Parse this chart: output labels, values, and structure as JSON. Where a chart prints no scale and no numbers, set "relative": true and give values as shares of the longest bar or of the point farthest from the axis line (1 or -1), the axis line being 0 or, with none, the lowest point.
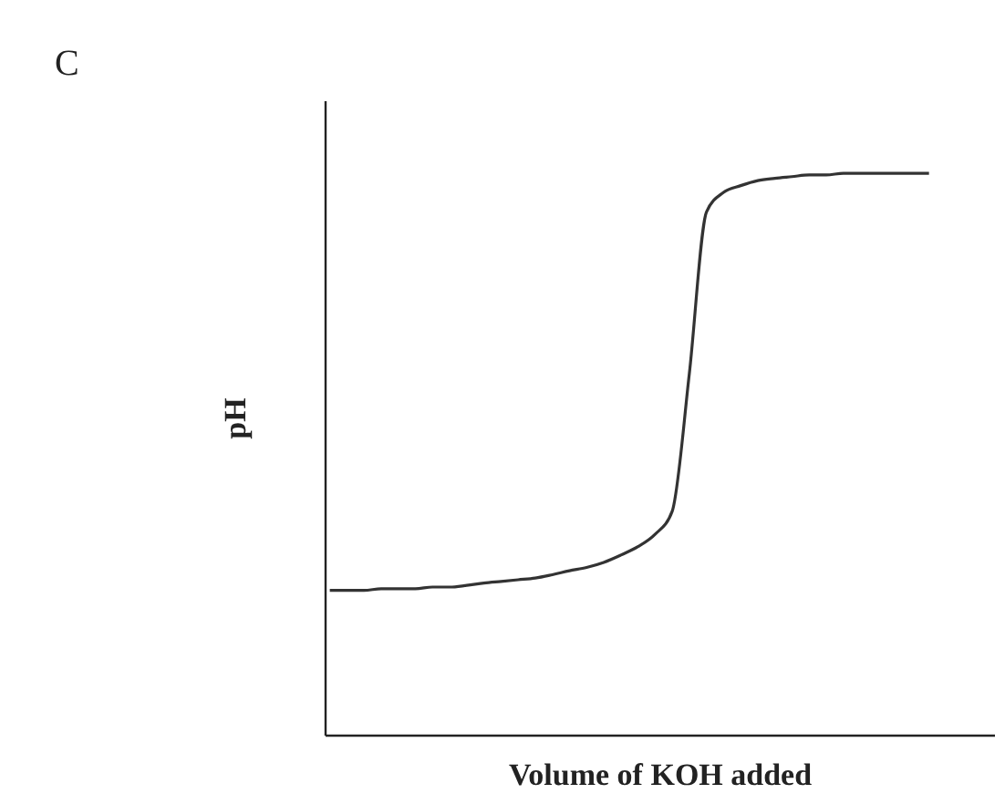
{
  "chart_data": {
    "type": "line",
    "title": "C",
    "xlabel": "Volume of KOH added",
    "ylabel": "pH",
    "relative": true,
    "tick_labels": false,
    "grid": false,
    "marker": "none",
    "line_style": "solid",
    "categories": [
      null,
      null,
      null,
      null,
      null,
      null,
      null,
      null,
      null,
      null,
      null,
      null,
      null,
      null,
      null,
      null,
      null,
      null,
      null,
      null,
      null,
      null,
      null,
      null,
      null,
      null,
      null,
      null,
      null,
      null,
      null,
      null,
      null,
      null,
      null,
      null
    ],
    "series": [
      {
        "color": "#333333",
        "values": [
          0.257,
          0.257,
          0.257,
          0.26,
          0.26,
          0.26,
          0.263,
          0.263,
          0.266,
          0.27,
          0.273,
          0.276,
          0.279,
          0.285,
          0.292,
          0.298,
          0.307,
          0.32,
          0.335,
          0.357,
          0.398,
          0.643,
          0.931,
          0.966,
          0.978,
          0.987,
          0.991,
          0.994,
          0.997,
          0.997,
          1,
          1,
          1,
          1,
          1,
          1
        ]
      }
    ]
  }
}
